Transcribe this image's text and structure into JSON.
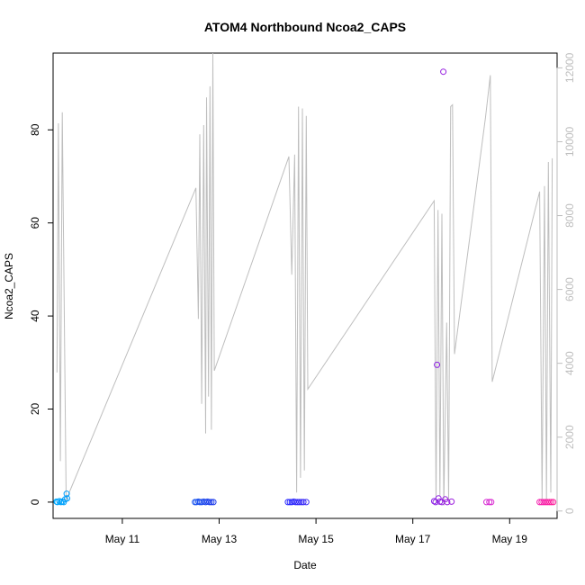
{
  "chart_data": {
    "type": "scatter",
    "title": "ATOM4 Northbound Ncoa2_CAPS",
    "xlabel": "Date",
    "ylabel": "Ncoa2_CAPS",
    "x_unit": "day of May",
    "xlim": [
      9.57,
      19.98
    ],
    "ylim_left": [
      -3.5,
      96.5
    ],
    "ylim_right": [
      -200,
      12400
    ],
    "x_ticks": [
      {
        "label": "May 11",
        "value": 11
      },
      {
        "label": "May 13",
        "value": 13
      },
      {
        "label": "May 15",
        "value": 15
      },
      {
        "label": "May 17",
        "value": 17
      },
      {
        "label": "May 19",
        "value": 19
      }
    ],
    "y_ticks_left": [
      0,
      20,
      40,
      60,
      80
    ],
    "y_ticks_right": [
      0,
      2000,
      4000,
      6000,
      8000,
      10000,
      12000
    ],
    "colors": {
      "line": "#bebebe",
      "axis": "#000000",
      "right_axis": "#bebebe"
    },
    "line_series": {
      "axis": "right",
      "points": [
        [
          9.65,
          3750
        ],
        [
          9.68,
          10500
        ],
        [
          9.72,
          1350
        ],
        [
          9.76,
          10800
        ],
        [
          9.84,
          300
        ],
        [
          12.52,
          8750
        ],
        [
          12.57,
          5200
        ],
        [
          12.6,
          10200
        ],
        [
          12.64,
          2900
        ],
        [
          12.68,
          10450
        ],
        [
          12.72,
          2100
        ],
        [
          12.74,
          11200
        ],
        [
          12.78,
          3100
        ],
        [
          12.81,
          11500
        ],
        [
          12.84,
          2200
        ],
        [
          12.87,
          12400
        ],
        [
          12.9,
          3800
        ],
        [
          14.44,
          9600
        ],
        [
          14.5,
          6400
        ],
        [
          14.56,
          9650
        ],
        [
          14.6,
          500
        ],
        [
          14.64,
          10950
        ],
        [
          14.68,
          900
        ],
        [
          14.72,
          10900
        ],
        [
          14.76,
          1100
        ],
        [
          14.8,
          10700
        ],
        [
          14.83,
          3300
        ],
        [
          17.44,
          8400
        ],
        [
          17.48,
          200
        ],
        [
          17.52,
          8150
        ],
        [
          17.56,
          400
        ],
        [
          17.6,
          8050
        ],
        [
          17.64,
          150
        ],
        [
          17.7,
          5100
        ],
        [
          17.74,
          300
        ],
        [
          17.78,
          10950
        ],
        [
          17.82,
          11000
        ],
        [
          17.86,
          4250
        ],
        [
          18.5,
          10650
        ],
        [
          18.6,
          11800
        ],
        [
          18.64,
          3500
        ],
        [
          19.62,
          8650
        ],
        [
          19.67,
          300
        ],
        [
          19.72,
          8800
        ],
        [
          19.76,
          300
        ],
        [
          19.8,
          9450
        ],
        [
          19.85,
          500
        ],
        [
          19.88,
          9550
        ]
      ]
    },
    "scatter_series": {
      "axis": "left",
      "points": [
        {
          "x": 9.64,
          "y": 0.1,
          "c": "#00aaff"
        },
        {
          "x": 9.66,
          "y": 0.0,
          "c": "#00a8fe"
        },
        {
          "x": 9.7,
          "y": 0.2,
          "c": "#00a6fd"
        },
        {
          "x": 9.73,
          "y": 0.0,
          "c": "#00a4fd"
        },
        {
          "x": 9.76,
          "y": 0.1,
          "c": "#00a3fc"
        },
        {
          "x": 9.79,
          "y": 0.0,
          "c": "#00a1fb"
        },
        {
          "x": 9.82,
          "y": 0.6,
          "c": "#009ffb"
        },
        {
          "x": 9.85,
          "y": 1.8,
          "c": "#009dfa"
        },
        {
          "x": 9.86,
          "y": 0.8,
          "c": "#009cf9"
        },
        {
          "x": 12.5,
          "y": 0.0,
          "c": "#1f5af0"
        },
        {
          "x": 12.53,
          "y": 0.0,
          "c": "#1f57ef"
        },
        {
          "x": 12.57,
          "y": 0.1,
          "c": "#1f54ef"
        },
        {
          "x": 12.6,
          "y": 0.0,
          "c": "#1f51ee"
        },
        {
          "x": 12.64,
          "y": 0.0,
          "c": "#1f4eee"
        },
        {
          "x": 12.68,
          "y": 0.1,
          "c": "#1f4bed"
        },
        {
          "x": 12.72,
          "y": 0.0,
          "c": "#1f48ed"
        },
        {
          "x": 12.76,
          "y": 0.1,
          "c": "#1f45ec"
        },
        {
          "x": 12.8,
          "y": 0.0,
          "c": "#1f42ec"
        },
        {
          "x": 12.84,
          "y": 0.0,
          "c": "#1f3feb"
        },
        {
          "x": 12.88,
          "y": 0.0,
          "c": "#1f3ceb"
        },
        {
          "x": 14.42,
          "y": 0.0,
          "c": "#2a2bff"
        },
        {
          "x": 14.46,
          "y": 0.0,
          "c": "#2c2bfe"
        },
        {
          "x": 14.5,
          "y": 0.0,
          "c": "#2e2bfd"
        },
        {
          "x": 14.54,
          "y": 0.1,
          "c": "#302bfc"
        },
        {
          "x": 14.58,
          "y": 0.0,
          "c": "#322bfb"
        },
        {
          "x": 14.62,
          "y": 0.0,
          "c": "#342bfa"
        },
        {
          "x": 14.66,
          "y": 0.0,
          "c": "#362bf9"
        },
        {
          "x": 14.7,
          "y": 0.0,
          "c": "#382bf8"
        },
        {
          "x": 14.74,
          "y": 0.0,
          "c": "#3a2bf7"
        },
        {
          "x": 14.8,
          "y": 0.0,
          "c": "#3c2bf6"
        },
        {
          "x": 17.44,
          "y": 0.2,
          "c": "#8a1fe6"
        },
        {
          "x": 17.47,
          "y": 0.0,
          "c": "#8c1fe5"
        },
        {
          "x": 17.5,
          "y": 29.5,
          "c": "#8e1fe4"
        },
        {
          "x": 17.53,
          "y": 0.8,
          "c": "#901fe3"
        },
        {
          "x": 17.56,
          "y": 0.1,
          "c": "#921fe2"
        },
        {
          "x": 17.6,
          "y": 0.0,
          "c": "#941fe1"
        },
        {
          "x": 17.63,
          "y": 92.5,
          "c": "#961fe0"
        },
        {
          "x": 17.67,
          "y": 0.6,
          "c": "#981fdf"
        },
        {
          "x": 17.71,
          "y": 0.0,
          "c": "#9a1fde"
        },
        {
          "x": 17.8,
          "y": 0.1,
          "c": "#9c1fdd"
        },
        {
          "x": 18.52,
          "y": 0.0,
          "c": "#d62bd4"
        },
        {
          "x": 18.58,
          "y": 0.0,
          "c": "#d82bd2"
        },
        {
          "x": 18.62,
          "y": 0.0,
          "c": "#da2bd0"
        },
        {
          "x": 19.62,
          "y": 0.0,
          "c": "#f521b0"
        },
        {
          "x": 19.66,
          "y": 0.0,
          "c": "#f621ad"
        },
        {
          "x": 19.7,
          "y": 0.0,
          "c": "#f721aa"
        },
        {
          "x": 19.74,
          "y": 0.0,
          "c": "#f821a7"
        },
        {
          "x": 19.78,
          "y": 0.0,
          "c": "#f921a4"
        },
        {
          "x": 19.82,
          "y": 0.0,
          "c": "#fa21a1"
        },
        {
          "x": 19.86,
          "y": 0.0,
          "c": "#fb219e"
        },
        {
          "x": 19.9,
          "y": 0.0,
          "c": "#fc219b"
        }
      ]
    }
  }
}
